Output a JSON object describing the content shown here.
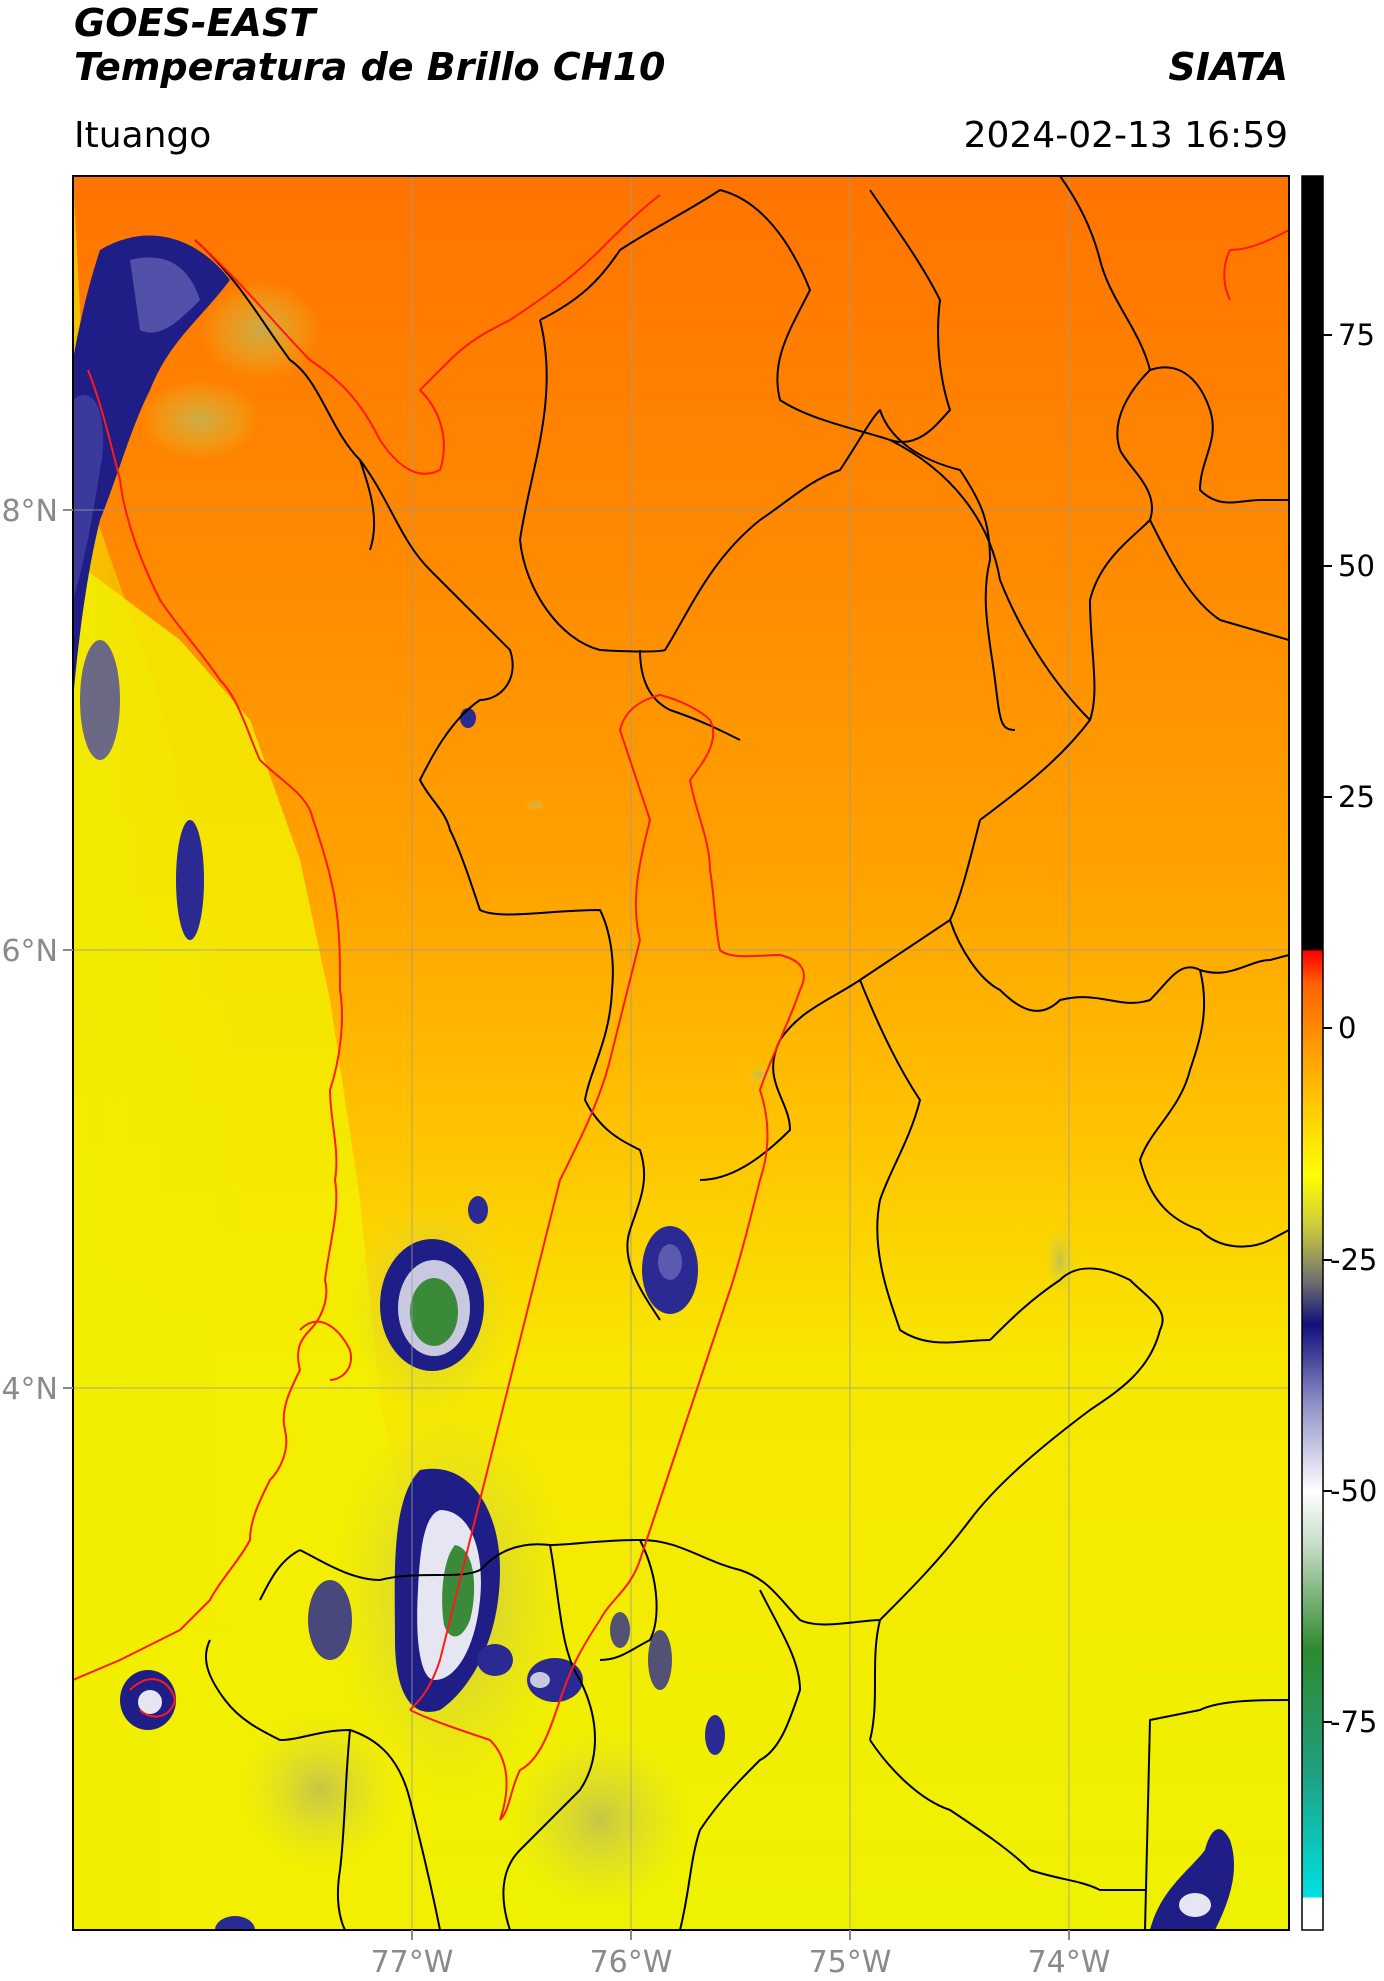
{
  "header": {
    "title_line1": "GOES-EAST",
    "title_line2": "Temperatura de Brillo CH10",
    "organization": "SIATA",
    "region": "Ituango",
    "datetime": "2024-02-13 16:59"
  },
  "map": {
    "longitude_ticks": [
      "77°W",
      "76°W",
      "75°W",
      "74°W"
    ],
    "latitude_ticks": [
      "8°N",
      "6°N",
      "4°N"
    ],
    "colors": {
      "warm_orange": "#ff7a00",
      "mid_orange": "#ffa800",
      "yellow": "#f6f200",
      "cloud_navy": "#1a1a80",
      "cloud_white": "#e8e8f4",
      "cloud_green": "#3a8a3a",
      "boundary_black": "#000000",
      "coast_red": "#ff0000",
      "grid": "#9a9a9a"
    }
  },
  "colorbar": {
    "tick_labels": [
      "75",
      "50",
      "25",
      "0",
      "-25",
      "-50",
      "-75"
    ]
  }
}
